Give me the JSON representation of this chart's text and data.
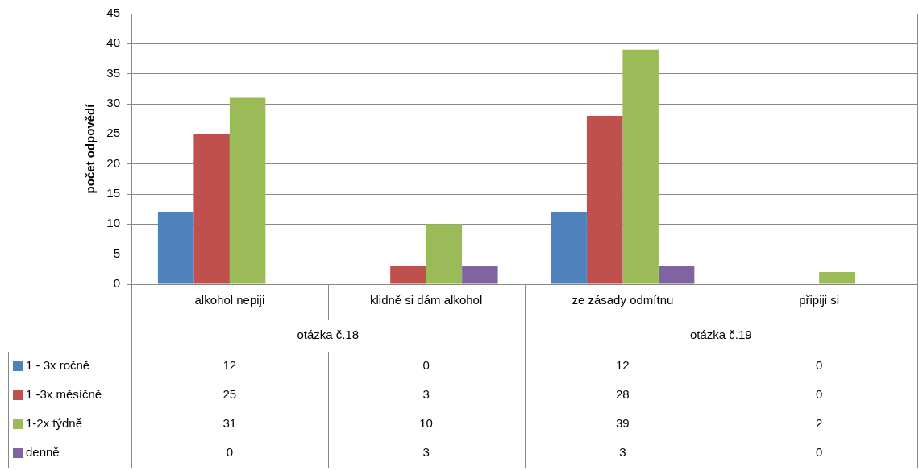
{
  "chart_data": {
    "type": "bar",
    "ylabel": "počet odpovědí",
    "categories": [
      "alkohol nepiji",
      "klidně si dám alkohol",
      "ze zásady odmítnu",
      "připiji si"
    ],
    "annotations": [
      "otázka č.18",
      "otázka č.19"
    ],
    "series": [
      {
        "name": "1 - 3x ročně",
        "color": "#4f81bd",
        "values": [
          12,
          0,
          12,
          0
        ]
      },
      {
        "name": "1 -3x měsíčně",
        "color": "#c0504d",
        "values": [
          25,
          3,
          28,
          0
        ]
      },
      {
        "name": "1-2x týdně",
        "color": "#9bbb59",
        "values": [
          31,
          10,
          39,
          2
        ]
      },
      {
        "name": "denně",
        "color": "#8064a2",
        "values": [
          0,
          3,
          3,
          0
        ]
      }
    ],
    "ylim": [
      0,
      45
    ],
    "yticks": [
      0,
      5,
      10,
      15,
      20,
      25,
      30,
      35,
      40,
      45
    ],
    "grid": "y",
    "legend": "bottom",
    "data_labels": true
  }
}
